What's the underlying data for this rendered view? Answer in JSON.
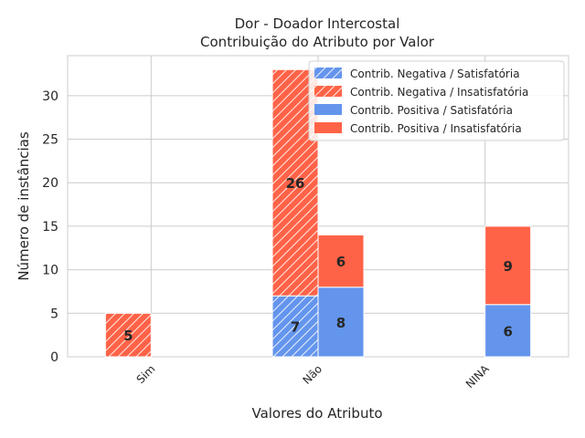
{
  "chart_data": {
    "type": "bar",
    "title": "Dor - Doador Intercostal",
    "subtitle": "Contribuição do Atributo por Valor",
    "xlabel": "Valores do Atributo",
    "ylabel": "Número de instâncias",
    "categories": [
      "Sim",
      "Não",
      "NINA"
    ],
    "ylim": [
      0,
      34.6
    ],
    "yticks": [
      0,
      5,
      10,
      15,
      20,
      25,
      30
    ],
    "grid": true,
    "legend_placement": "top-right",
    "stacks": [
      {
        "name": "Contrib. Negativa",
        "hatched": true,
        "series": [
          {
            "name": "Contrib. Negativa / Satisfatória",
            "values": [
              0,
              7,
              0
            ],
            "color": "#6495ed"
          },
          {
            "name": "Contrib. Negativa / Insatisfatória",
            "values": [
              5,
              26,
              0
            ],
            "color": "#ff6347"
          }
        ]
      },
      {
        "name": "Contrib. Positiva",
        "hatched": false,
        "series": [
          {
            "name": "Contrib. Positiva / Satisfatória",
            "values": [
              0,
              8,
              6
            ],
            "color": "#6495ed"
          },
          {
            "name": "Contrib. Positiva / Insatisfatória",
            "values": [
              0,
              6,
              9
            ],
            "color": "#ff6347"
          }
        ]
      }
    ]
  }
}
